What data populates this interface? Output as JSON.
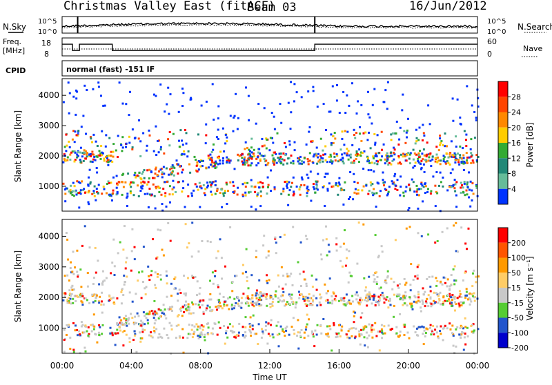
{
  "chart_data": {
    "type": "heatmap",
    "title": "Christmas Valley East (fitACF)",
    "beam": "Beam 03",
    "date": "16/Jun/2012",
    "xlabel": "Time UT",
    "x_ticks": [
      "00:00",
      "04:00",
      "08:00",
      "12:00",
      "16:00",
      "20:00",
      "00:00"
    ],
    "x_range_hours": [
      0,
      24
    ],
    "cpid_label": "CPID",
    "cpid_text": "normal (fast) -151 IF",
    "top_panels": {
      "nsky_label": "N.Sky",
      "nsearch_label": "N.Search",
      "freq_label_1": "Freq.",
      "freq_label_2": "[MHz]",
      "nave_label": "Nave",
      "nsky_ticks": [
        "10^5",
        "10^0"
      ],
      "nsearch_ticks": [
        "10^5",
        "10^0"
      ],
      "freq_ticks": [
        "18",
        "8"
      ],
      "nave_ticks": [
        "60",
        "0"
      ],
      "freq_steps": [
        {
          "t0": 0.0,
          "t1": 0.6,
          "mhz": 14.5
        },
        {
          "t0": 0.6,
          "t1": 1.0,
          "mhz": 11.0
        },
        {
          "t0": 1.0,
          "t1": 2.9,
          "mhz": 14.5
        },
        {
          "t0": 2.9,
          "t1": 14.6,
          "mhz": 11.0
        },
        {
          "t0": 14.6,
          "t1": 24.0,
          "mhz": 14.5
        }
      ]
    },
    "panels": [
      {
        "ylabel": "Slant Range [km]",
        "y_ticks": [
          1000,
          2000,
          3000,
          4000
        ],
        "ylim": [
          180,
          4550
        ],
        "colorbar_label": "Power [dB]",
        "colorbar_ticks": [
          "28",
          "24",
          "20",
          "16",
          "12",
          "8",
          "4"
        ],
        "colorbar_colors": [
          "#ff0000",
          "#ff4400",
          "#ff8800",
          "#ffcc00",
          "#33aa33",
          "#228877",
          "#66bb99",
          "#0033ff"
        ]
      },
      {
        "ylabel": "Slant Range [km]",
        "y_ticks": [
          1000,
          2000,
          3000,
          4000
        ],
        "ylim": [
          180,
          4550
        ],
        "colorbar_label": "Velocity [m s⁻¹]",
        "colorbar_ticks": [
          "200",
          "100",
          "50",
          "15",
          "-15",
          "-50",
          "-100",
          "-200"
        ],
        "colorbar_colors": [
          "#ff0000",
          "#ff5500",
          "#ff9900",
          "#ffcc66",
          "#c8c8c8",
          "#55cc33",
          "#2255cc",
          "#0000cc"
        ]
      }
    ]
  }
}
